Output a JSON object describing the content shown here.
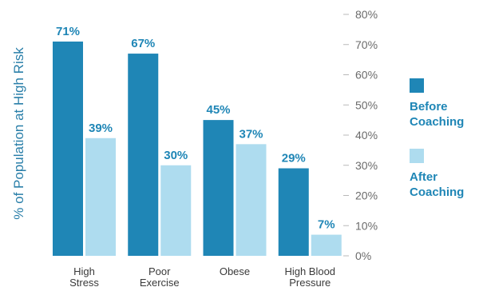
{
  "chart_data": {
    "type": "bar",
    "ylabel": "% of Population at High Risk",
    "categories": [
      [
        "High",
        "Stress"
      ],
      [
        "Poor",
        "Exercise"
      ],
      [
        "Obese"
      ],
      [
        "High Blood",
        "Pressure"
      ]
    ],
    "series": [
      {
        "name": [
          "Before",
          "Coaching"
        ],
        "values": [
          71,
          67,
          45,
          29
        ],
        "labels": [
          "71%",
          "67%",
          "45%",
          "29%"
        ],
        "color": "#1f86b6"
      },
      {
        "name": [
          "After",
          "Coaching"
        ],
        "values": [
          39,
          30,
          37,
          7
        ],
        "labels": [
          "39%",
          "30%",
          "37%",
          "7%"
        ],
        "color": "#aedcef"
      }
    ],
    "ylim": [
      0,
      80
    ],
    "yticks": [
      "0%",
      "10%",
      "20%",
      "30%",
      "40%",
      "50%",
      "60%",
      "70%",
      "80%"
    ],
    "ytick_values": [
      0,
      10,
      20,
      30,
      40,
      50,
      60,
      70,
      80
    ],
    "legend_position": "right",
    "grid": false,
    "colors": {
      "label_text": "#1f86b6",
      "axis_title": "#2a7fa9"
    }
  }
}
